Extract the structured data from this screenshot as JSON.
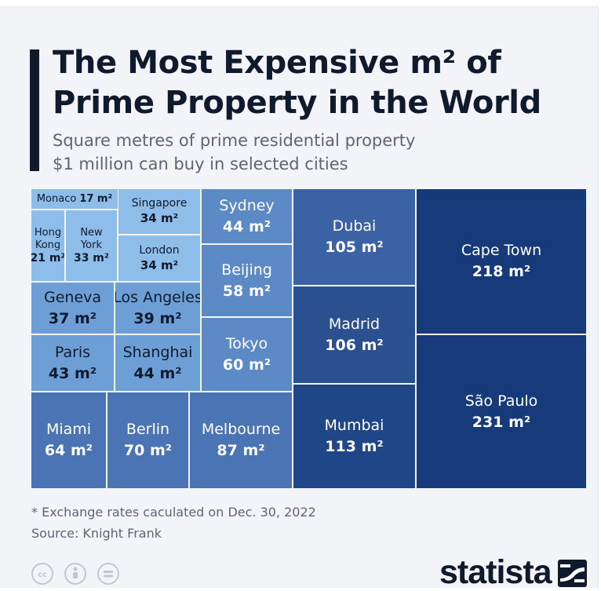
{
  "header": {
    "title_line1": "The Most Expensive m² of",
    "title_line2": "Prime Property in the World",
    "subtitle_line1": "Square metres of prime residential property",
    "subtitle_line2": "$1 million can buy in selected cities"
  },
  "chart_data": {
    "type": "treemap",
    "title": "The Most Expensive m² of Prime Property in the World",
    "subtitle": "Square metres of prime residential property $1 million can buy in selected cities",
    "unit": "m²",
    "items": [
      {
        "city": "Monaco",
        "value": 17,
        "label": "17 m²"
      },
      {
        "city": "Hong Kong",
        "value": 21,
        "label": "21 m²"
      },
      {
        "city": "New York",
        "value": 33,
        "label": "33 m²"
      },
      {
        "city": "Singapore",
        "value": 34,
        "label": "34 m²"
      },
      {
        "city": "London",
        "value": 34,
        "label": "34 m²"
      },
      {
        "city": "Geneva",
        "value": 37,
        "label": "37 m²"
      },
      {
        "city": "Los Angeles",
        "value": 39,
        "label": "39 m²"
      },
      {
        "city": "Paris",
        "value": 43,
        "label": "43 m²"
      },
      {
        "city": "Shanghai",
        "value": 44,
        "label": "44 m²"
      },
      {
        "city": "Sydney",
        "value": 44,
        "label": "44 m²"
      },
      {
        "city": "Beijing",
        "value": 58,
        "label": "58 m²"
      },
      {
        "city": "Tokyo",
        "value": 60,
        "label": "60 m²"
      },
      {
        "city": "Miami",
        "value": 64,
        "label": "64 m²"
      },
      {
        "city": "Berlin",
        "value": 70,
        "label": "70 m²"
      },
      {
        "city": "Melbourne",
        "value": 87,
        "label": "87 m²"
      },
      {
        "city": "Dubai",
        "value": 105,
        "label": "105 m²"
      },
      {
        "city": "Madrid",
        "value": 106,
        "label": "106 m²"
      },
      {
        "city": "Mumbai",
        "value": 113,
        "label": "113 m²"
      },
      {
        "city": "Cape Town",
        "value": 218,
        "label": "218 m²"
      },
      {
        "city": "São Paulo",
        "value": 231,
        "label": "231 m²"
      }
    ]
  },
  "hk_lines": [
    "Hong",
    "Kong"
  ],
  "ny_lines": [
    "New",
    "York"
  ],
  "footer": {
    "note": "* Exchange rates caculated on Dec. 30, 2022",
    "source": "Source: Knight Frank",
    "license_icons": [
      "cc-icon",
      "person-icon",
      "equals-icon"
    ],
    "brand": "statista"
  },
  "colors": {
    "lightest": "#8fbde9",
    "light": "#6d9fd6",
    "mid_light": "#5b8ac6",
    "mid": "#4a74b4",
    "mid_dark": "#3a62a4",
    "dark": "#2a5090",
    "darker": "#1f4687",
    "darkest": "#163a7a",
    "ink": "#0f1b2d"
  }
}
